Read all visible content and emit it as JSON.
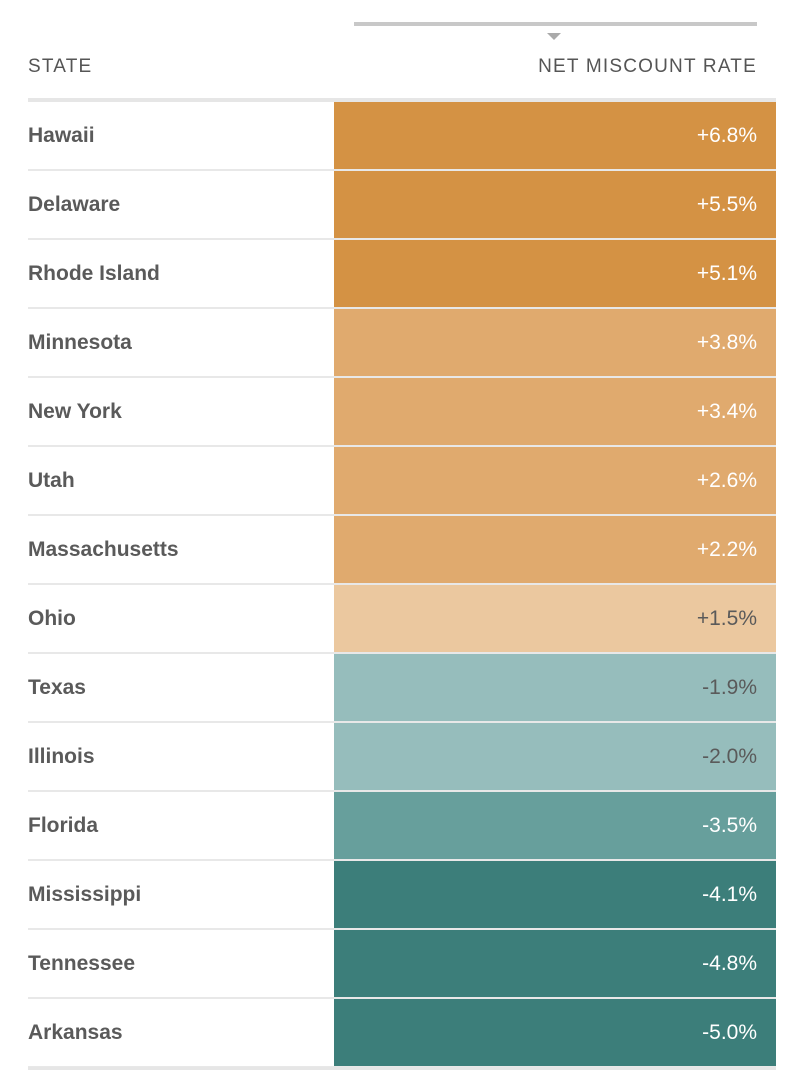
{
  "header": {
    "state_label": "STATE",
    "rate_label": "NET MISCOUNT RATE"
  },
  "sort": {
    "column": "NET MISCOUNT RATE",
    "direction": "descending"
  },
  "colors": {
    "strong_over": "#d49244",
    "mid_over": "#e0aa6e",
    "light_over": "#ebc89f",
    "light_under": "#96bdbc",
    "mid_under": "#679f9c",
    "strong_under": "#3c7e7a",
    "text_light": "#ffffff",
    "text_dark": "#5a5a5a"
  },
  "chart_data": {
    "type": "table",
    "columns": [
      "STATE",
      "NET MISCOUNT RATE"
    ],
    "rows": [
      {
        "state": "Hawaii",
        "value": 6.8,
        "label": "+6.8%",
        "color": "#d49244",
        "text_color": "#ffffff"
      },
      {
        "state": "Delaware",
        "value": 5.5,
        "label": "+5.5%",
        "color": "#d49244",
        "text_color": "#ffffff"
      },
      {
        "state": "Rhode Island",
        "value": 5.1,
        "label": "+5.1%",
        "color": "#d49244",
        "text_color": "#ffffff"
      },
      {
        "state": "Minnesota",
        "value": 3.8,
        "label": "+3.8%",
        "color": "#e0aa6e",
        "text_color": "#ffffff"
      },
      {
        "state": "New York",
        "value": 3.4,
        "label": "+3.4%",
        "color": "#e0aa6e",
        "text_color": "#ffffff"
      },
      {
        "state": "Utah",
        "value": 2.6,
        "label": "+2.6%",
        "color": "#e0aa6e",
        "text_color": "#ffffff"
      },
      {
        "state": "Massachusetts",
        "value": 2.2,
        "label": "+2.2%",
        "color": "#e0aa6e",
        "text_color": "#ffffff"
      },
      {
        "state": "Ohio",
        "value": 1.5,
        "label": "+1.5%",
        "color": "#ebc89f",
        "text_color": "#5a5a5a"
      },
      {
        "state": "Texas",
        "value": -1.9,
        "label": "-1.9%",
        "color": "#96bdbc",
        "text_color": "#5a5a5a"
      },
      {
        "state": "Illinois",
        "value": -2.0,
        "label": "-2.0%",
        "color": "#96bdbc",
        "text_color": "#5a5a5a"
      },
      {
        "state": "Florida",
        "value": -3.5,
        "label": "-3.5%",
        "color": "#679f9c",
        "text_color": "#ffffff"
      },
      {
        "state": "Mississippi",
        "value": -4.1,
        "label": "-4.1%",
        "color": "#3c7e7a",
        "text_color": "#ffffff"
      },
      {
        "state": "Tennessee",
        "value": -4.8,
        "label": "-4.8%",
        "color": "#3c7e7a",
        "text_color": "#ffffff"
      },
      {
        "state": "Arkansas",
        "value": -5.0,
        "label": "-5.0%",
        "color": "#3c7e7a",
        "text_color": "#ffffff"
      }
    ]
  }
}
